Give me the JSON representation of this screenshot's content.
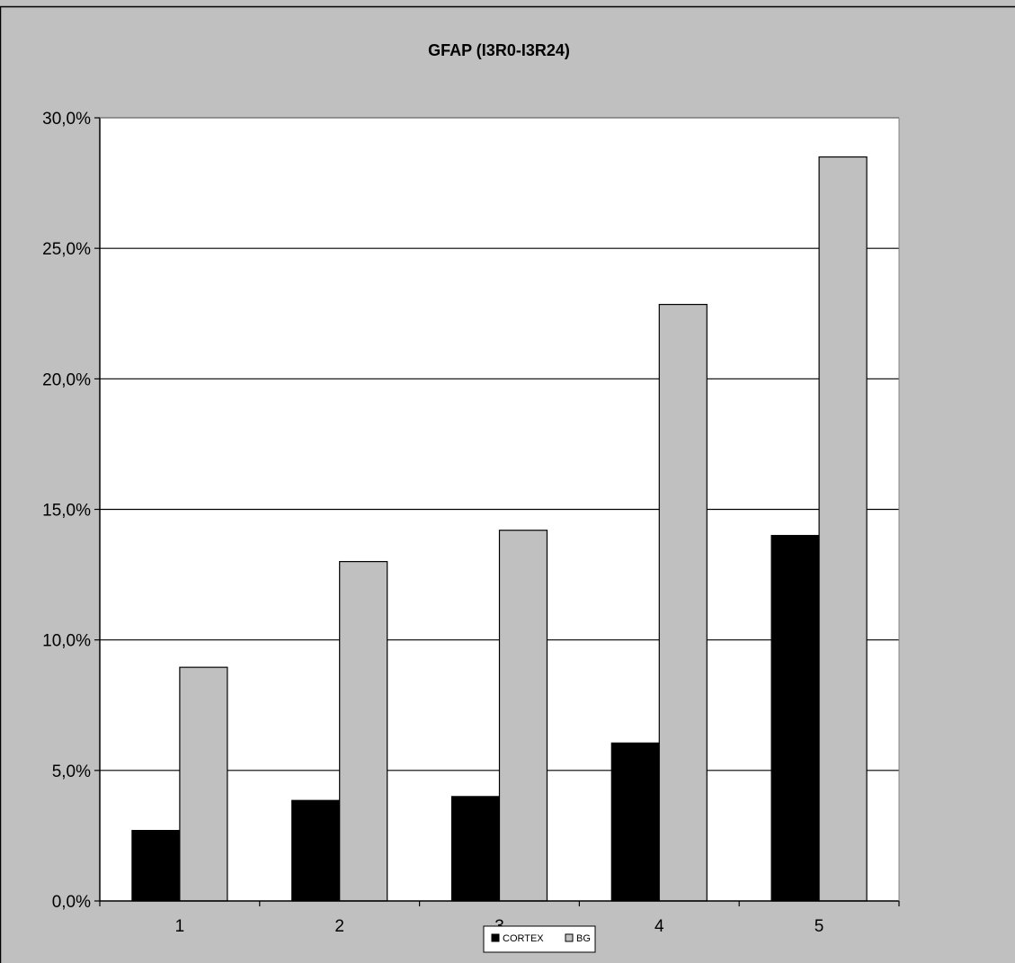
{
  "chart_data": {
    "type": "bar",
    "title": "GFAP (I3R0-I3R24)",
    "categories": [
      "1",
      "2",
      "3",
      "4",
      "5"
    ],
    "series": [
      {
        "name": "CORTEX",
        "color": "#000000",
        "values": [
          2.7,
          3.85,
          4.0,
          6.05,
          14.0
        ]
      },
      {
        "name": "BG",
        "color": "#c0c0c0",
        "values": [
          8.95,
          13.0,
          14.2,
          22.85,
          28.5
        ]
      }
    ],
    "ylim": [
      0,
      30
    ],
    "yticks": [
      "0,0%",
      "5,0%",
      "10,0%",
      "15,0%",
      "20,0%",
      "25,0%",
      "30,0%"
    ],
    "grid": true,
    "legend": "bottom-center",
    "plot_background": "#ffffff",
    "chart_background": "#c0c0c0"
  }
}
